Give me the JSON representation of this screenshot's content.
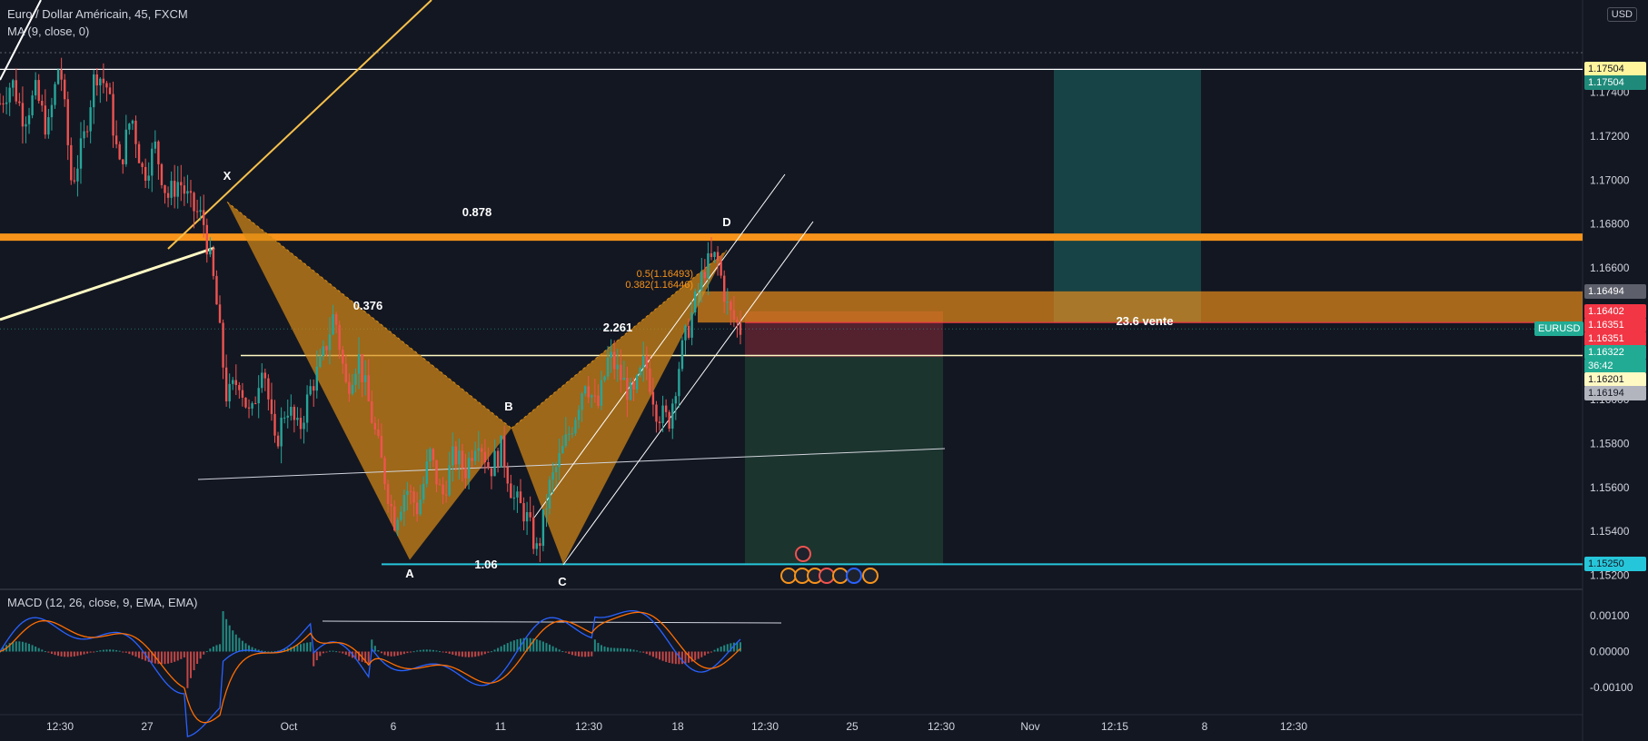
{
  "header": {
    "symbol_line": "Euro / Dollar Américain, 45, FXCM",
    "ma_line": "MA (9, close, 0)",
    "currency": "USD"
  },
  "macd_title": "MACD (12, 26, close, 9, EMA, EMA)",
  "colors": {
    "background": "#131722",
    "pattern_fill": "#d88b15",
    "resistance": "#f7931a",
    "support": "#26c6da",
    "long_zone": "#1f7a73",
    "short_zone": "#8b2a3a",
    "target_zone": "#2e6b45",
    "up_candle": "#26a69a",
    "down_candle": "#ef5350",
    "macd_line": "#2962ff",
    "signal_line": "#ff6d00"
  },
  "chart_data": {
    "type": "candlestick",
    "symbol": "EURUSD",
    "timeframe": "45",
    "ylim": [
      1.1514,
      1.1782
    ],
    "y_ticks": [
      "1.17400",
      "1.17200",
      "1.17000",
      "1.16800",
      "1.16600",
      "1.16400",
      "1.16200",
      "1.16000",
      "1.15800",
      "1.15600",
      "1.15400",
      "1.15200"
    ],
    "x_ticks": [
      "12:30",
      "27",
      "Oct",
      "6",
      "11",
      "12:30",
      "18",
      "12:30",
      "25",
      "12:30",
      "Nov",
      "12:15",
      "8",
      "12:30"
    ],
    "close_path": [
      1.1735,
      1.1745,
      1.1728,
      1.174,
      1.1722,
      1.1755,
      1.1698,
      1.1718,
      1.175,
      1.1742,
      1.1705,
      1.173,
      1.1702,
      1.1715,
      1.1692,
      1.17,
      1.1688,
      1.1682,
      1.165,
      1.16,
      1.161,
      1.159,
      1.162,
      1.1578,
      1.1598,
      1.1585,
      1.1605,
      1.1618,
      1.164,
      1.1605,
      1.162,
      1.1595,
      1.157,
      1.1545,
      1.156,
      1.155,
      1.1575,
      1.1555,
      1.1575,
      1.1568,
      1.1585,
      1.1568,
      1.1578,
      1.1555,
      1.1548,
      1.153,
      1.156,
      1.1575,
      1.159,
      1.161,
      1.1595,
      1.162,
      1.161,
      1.16,
      1.1618,
      1.1595,
      1.159,
      1.162,
      1.164,
      1.166,
      1.1665,
      1.164,
      1.1632
    ],
    "harmonic_pattern": {
      "points": [
        {
          "label": "X",
          "price": 1.169
        },
        {
          "label": "A",
          "price": 1.1527
        },
        {
          "label": "B",
          "price": 1.1587
        },
        {
          "label": "C",
          "price": 1.1525
        },
        {
          "label": "D",
          "price": 1.1668
        }
      ],
      "ratios": [
        "0.878",
        "0.376",
        "2.261",
        "1.06"
      ]
    },
    "fib_labels": [
      "0.5(1.16493)",
      "0.382(1.16446)"
    ],
    "position_label": "23.6 vente",
    "price_tags": [
      {
        "text": "1.17504",
        "bg": "#fff59d",
        "fg": "#131722",
        "price": 1.17504
      },
      {
        "text": "1.17504",
        "bg": "#1f8a7a",
        "fg": "#ffffff",
        "price": 1.17504
      },
      {
        "text": "1.16494",
        "bg": "#5d606b",
        "fg": "#ffffff",
        "price": 1.16494
      },
      {
        "text": "1.16402",
        "bg": "#f23645",
        "fg": "#ffffff",
        "price": 1.16402
      },
      {
        "text": "1.16351",
        "bg": "#f23645",
        "fg": "#ffffff",
        "price": 1.16351
      },
      {
        "text": "1.16351",
        "bg": "#f23645",
        "fg": "#ffffff",
        "price": 1.16351
      },
      {
        "text": "1.16322",
        "bg": "#22ab94",
        "fg": "#ffffff",
        "price": 1.16322
      },
      {
        "text": "36:42",
        "bg": "#22ab94",
        "fg": "#ffffff",
        "price": 1.16322
      },
      {
        "text": "1.16201",
        "bg": "#fff9c4",
        "fg": "#131722",
        "price": 1.16201
      },
      {
        "text": "1.16194",
        "bg": "#b2b5be",
        "fg": "#131722",
        "price": 1.16194
      },
      {
        "text": "1.15250",
        "bg": "#26c6da",
        "fg": "#131722",
        "price": 1.1525
      }
    ],
    "last_symbol_tag": "EURUSD",
    "macd": {
      "ylim": [
        -0.0017,
        0.0017
      ],
      "y_ticks": [
        "0.00100",
        "0.00000",
        "-0.00100"
      ]
    }
  }
}
